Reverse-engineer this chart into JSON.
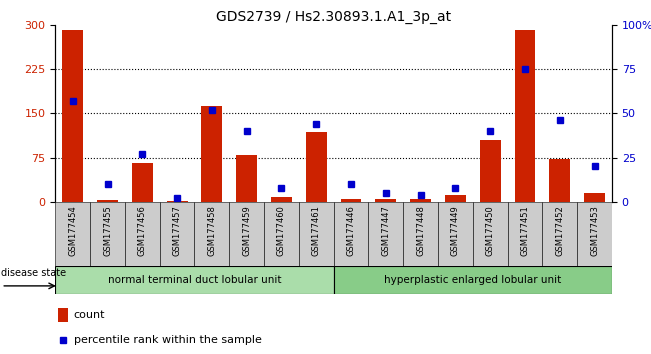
{
  "title": "GDS2739 / Hs2.30893.1.A1_3p_at",
  "samples": [
    "GSM177454",
    "GSM177455",
    "GSM177456",
    "GSM177457",
    "GSM177458",
    "GSM177459",
    "GSM177460",
    "GSM177461",
    "GSM177446",
    "GSM177447",
    "GSM177448",
    "GSM177449",
    "GSM177450",
    "GSM177451",
    "GSM177452",
    "GSM177453"
  ],
  "counts": [
    292,
    3,
    65,
    2,
    163,
    80,
    8,
    118,
    5,
    4,
    4,
    12,
    105,
    292,
    73,
    15
  ],
  "percentiles": [
    57,
    10,
    27,
    2,
    52,
    40,
    8,
    44,
    10,
    5,
    4,
    8,
    40,
    75,
    46,
    20
  ],
  "group1_label": "normal terminal duct lobular unit",
  "group2_label": "hyperplastic enlarged lobular unit",
  "group1_count": 8,
  "group2_count": 8,
  "disease_state_label": "disease state",
  "legend_count_label": "count",
  "legend_pct_label": "percentile rank within the sample",
  "ylim_left": [
    0,
    300
  ],
  "ylim_right": [
    0,
    100
  ],
  "yticks_left": [
    0,
    75,
    150,
    225,
    300
  ],
  "yticks_right": [
    0,
    25,
    50,
    75,
    100
  ],
  "yticklabels_right": [
    "0",
    "25",
    "50",
    "75",
    "100%"
  ],
  "bar_color": "#cc2200",
  "pct_color": "#0000cc",
  "group1_color": "#aaddaa",
  "group2_color": "#88cc88",
  "tick_area_color": "#cccccc",
  "title_fontsize": 10,
  "tick_fontsize": 8,
  "legend_fontsize": 8,
  "label_fontsize": 7.5
}
